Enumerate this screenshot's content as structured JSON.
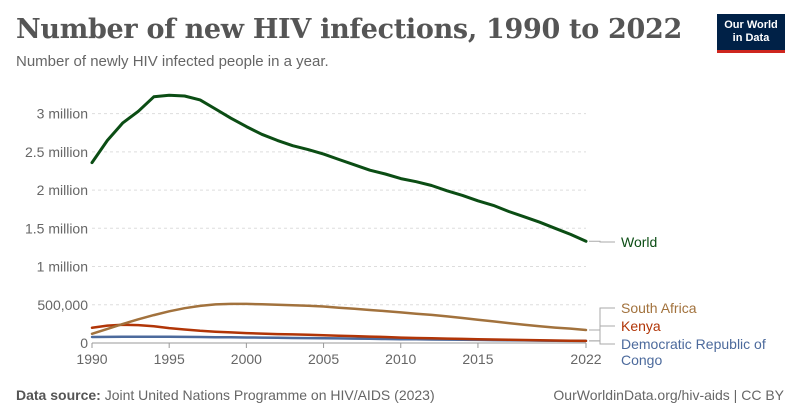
{
  "header": {
    "title": "Number of new HIV infections, 1990 to 2022",
    "subtitle": "Number of newly HIV infected people in a year."
  },
  "logo": {
    "line1": "Our World",
    "line2": "in Data"
  },
  "footer": {
    "source_label": "Data source:",
    "source_text": "Joint United Nations Programme on HIV/AIDS (2023)",
    "url": "OurWorldinData.org/hiv-aids | CC BY"
  },
  "chart_data": {
    "type": "line",
    "title": "Number of new HIV infections, 1990 to 2022",
    "subtitle": "Number of newly HIV infected people in a year.",
    "xlabel": "",
    "ylabel": "",
    "xlim": [
      1990,
      2022
    ],
    "ylim": [
      0,
      3250000
    ],
    "x_ticks": [
      1990,
      1995,
      2000,
      2005,
      2010,
      2015,
      2022
    ],
    "y_ticks": [
      {
        "value": 0,
        "label": "0"
      },
      {
        "value": 500000,
        "label": "500,000"
      },
      {
        "value": 1000000,
        "label": "1 million"
      },
      {
        "value": 1500000,
        "label": "1.5 million"
      },
      {
        "value": 2000000,
        "label": "2 million"
      },
      {
        "value": 2500000,
        "label": "2.5 million"
      },
      {
        "value": 3000000,
        "label": "3 million"
      }
    ],
    "grid": true,
    "legend": "right (labels at line ends)",
    "x": [
      1990,
      1991,
      1992,
      1993,
      1994,
      1995,
      1996,
      1997,
      1998,
      1999,
      2000,
      2001,
      2002,
      2003,
      2004,
      2005,
      2006,
      2007,
      2008,
      2009,
      2010,
      2011,
      2012,
      2013,
      2014,
      2015,
      2016,
      2017,
      2018,
      2019,
      2020,
      2021,
      2022
    ],
    "series": [
      {
        "name": "World",
        "color": "#0b4d14",
        "values": [
          2360000,
          2650000,
          2880000,
          3030000,
          3220000,
          3240000,
          3230000,
          3180000,
          3060000,
          2940000,
          2830000,
          2730000,
          2650000,
          2580000,
          2530000,
          2470000,
          2400000,
          2330000,
          2260000,
          2210000,
          2150000,
          2110000,
          2060000,
          1990000,
          1930000,
          1860000,
          1800000,
          1720000,
          1650000,
          1580000,
          1500000,
          1420000,
          1330000
        ]
      },
      {
        "name": "South Africa",
        "color": "#a2723d",
        "values": [
          120000,
          185000,
          250000,
          310000,
          365000,
          415000,
          455000,
          485000,
          505000,
          512000,
          512000,
          506000,
          500000,
          493000,
          487000,
          477000,
          462000,
          448000,
          432000,
          417000,
          400000,
          383000,
          367000,
          348000,
          327000,
          305000,
          282000,
          260000,
          238000,
          218000,
          201000,
          188000,
          170000
        ]
      },
      {
        "name": "Kenya",
        "color": "#b13507",
        "values": [
          200000,
          228000,
          238000,
          234000,
          218000,
          195000,
          176000,
          160000,
          148000,
          138000,
          130000,
          123000,
          117000,
          112000,
          107000,
          102000,
          96000,
          90000,
          84000,
          78000,
          71000,
          66000,
          62000,
          58000,
          54000,
          50000,
          46000,
          42000,
          39000,
          36000,
          33000,
          30000,
          28000
        ]
      },
      {
        "name": "Democratic Republic of Congo",
        "color": "#4c6a9c",
        "values": [
          78000,
          80000,
          82000,
          83000,
          83000,
          82000,
          80000,
          78000,
          76000,
          74000,
          72000,
          70000,
          68000,
          66000,
          64000,
          62000,
          60000,
          58000,
          55000,
          52000,
          50000,
          48000,
          46000,
          44000,
          42000,
          40000,
          38000,
          36000,
          34000,
          32000,
          30000,
          28000,
          27000
        ]
      }
    ]
  }
}
